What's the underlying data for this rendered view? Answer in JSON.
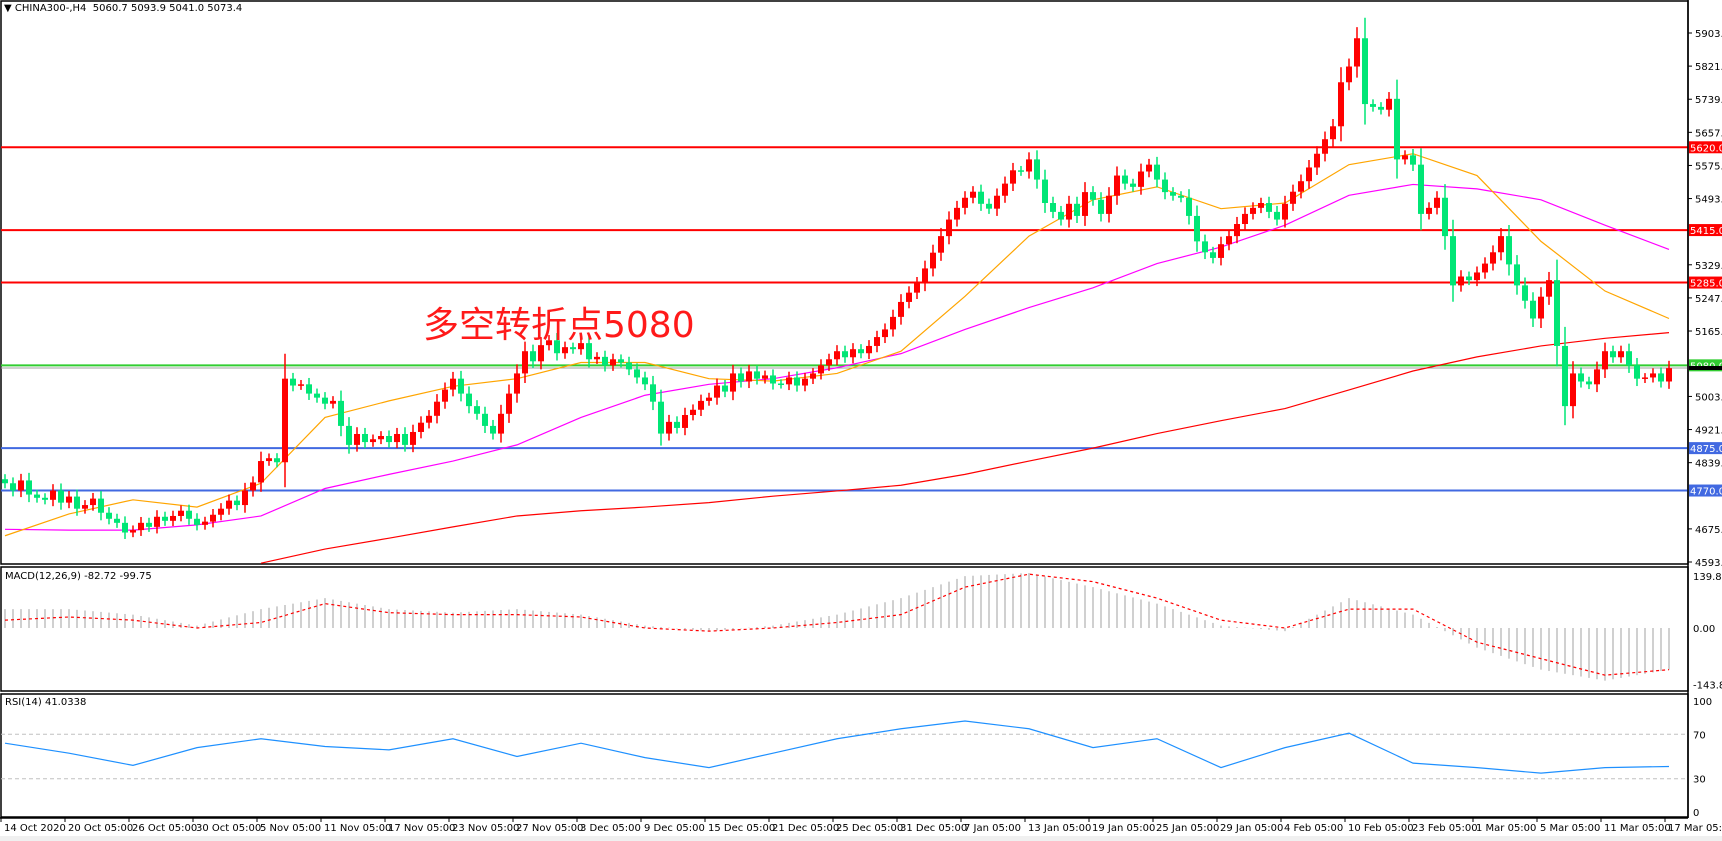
{
  "header": {
    "symbol": "CHINA300-,H4",
    "ohlc": "5060.7 5093.9 5041.0 5073.4",
    "menu_icon": "triangle-down-icon"
  },
  "annotation": "多空转折点5080",
  "macd_label": "MACD(12,26,9) -82.72 -99.75",
  "rsi_label": "RSI(14) 41.0338",
  "colors": {
    "up": "#ff0000",
    "down": "#00e676",
    "ma_fast": "#ffa500",
    "ma_mid": "#ff00ff",
    "ma_slow": "#ff0000",
    "rsi": "#1e90ff",
    "macd_hist": "#c0c0c0",
    "macd_signal": "#ff0000"
  },
  "chart_data": {
    "type": "candlestick",
    "price_axis": {
      "ylim": [
        4593,
        5903
      ],
      "ticks": [
        "5903.0",
        "5821.0",
        "5739.0",
        "5657.0",
        "5575.0",
        "5493.0",
        "5329.0",
        "5247.0",
        "5165.0",
        "5003.0",
        "4921.0",
        "4839.0",
        "4675.0",
        "4593.0"
      ]
    },
    "time_labels": [
      "14 Oct 2020",
      "20 Oct 05:00",
      "26 Oct 05:00",
      "30 Oct 05:00",
      "5 Nov 05:00",
      "11 Nov 05:00",
      "17 Nov 05:00",
      "23 Nov 05:00",
      "27 Nov 05:00",
      "3 Dec 05:00",
      "9 Dec 05:00",
      "15 Dec 05:00",
      "21 Dec 05:00",
      "25 Dec 05:00",
      "31 Dec 05:00",
      "7 Jan 05:00",
      "13 Jan 05:00",
      "19 Jan 05:00",
      "25 Jan 05:00",
      "29 Jan 05:00",
      "4 Feb 05:00",
      "10 Feb 05:00",
      "23 Feb 05:00",
      "1 Mar 05:00",
      "5 Mar 05:00",
      "11 Mar 05:00",
      "17 Mar 05:00"
    ],
    "closes": [
      4788,
      4770,
      4795,
      4760,
      4752,
      4747,
      4770,
      4740,
      4755,
      4725,
      4734,
      4750,
      4715,
      4700,
      4690,
      4666,
      4672,
      4690,
      4680,
      4705,
      4695,
      4707,
      4720,
      4700,
      4685,
      4693,
      4710,
      4725,
      4745,
      4734,
      4770,
      4790,
      4843,
      4850,
      4840,
      5047,
      5030,
      5033,
      5010,
      5000,
      4985,
      4992,
      4930,
      4883,
      4910,
      4890,
      4897,
      4905,
      4890,
      4910,
      4883,
      4915,
      4938,
      4955,
      4990,
      5020,
      5047,
      5010,
      4979,
      4960,
      4930,
      4911,
      4960,
      5010,
      5060,
      5115,
      5090,
      5130,
      5142,
      5110,
      5125,
      5120,
      5135,
      5095,
      5101,
      5080,
      5095,
      5087,
      5070,
      5050,
      5033,
      4990,
      4911,
      4940,
      4925,
      4957,
      4970,
      4992,
      5000,
      5030,
      5015,
      5060,
      5040,
      5065,
      5047,
      5055,
      5035,
      5033,
      5050,
      5030,
      5047,
      5060,
      5080,
      5095,
      5115,
      5100,
      5120,
      5110,
      5128,
      5150,
      5169,
      5200,
      5237,
      5260,
      5283,
      5320,
      5359,
      5400,
      5441,
      5470,
      5495,
      5510,
      5480,
      5468,
      5500,
      5530,
      5563,
      5560,
      5590,
      5540,
      5482,
      5460,
      5441,
      5480,
      5450,
      5509,
      5490,
      5455,
      5500,
      5550,
      5530,
      5522,
      5560,
      5577,
      5540,
      5509,
      5500,
      5495,
      5450,
      5387,
      5360,
      5346,
      5380,
      5400,
      5430,
      5455,
      5470,
      5482,
      5460,
      5441,
      5480,
      5510,
      5536,
      5570,
      5604,
      5640,
      5672,
      5781,
      5820,
      5890,
      5727,
      5720,
      5713,
      5740,
      5590,
      5600,
      5577,
      5455,
      5470,
      5495,
      5400,
      5278,
      5300,
      5291,
      5310,
      5332,
      5360,
      5400,
      5330,
      5278,
      5240,
      5196,
      5250,
      5291,
      5128,
      4979,
      5060,
      5040,
      5033,
      5070,
      5115,
      5100,
      5115,
      5080,
      5047,
      5050,
      5060,
      5040,
      5073
    ],
    "ma_sample_step_bars": 8,
    "ma_fast": [
      4658,
      4712,
      4747,
      4729,
      4788,
      4951,
      4992,
      5028,
      5047,
      5087,
      5087,
      5047,
      5041,
      5060,
      5115,
      5251,
      5400,
      5490,
      5522,
      5468,
      5482,
      5577,
      5604,
      5550,
      5387,
      5264,
      5196
    ],
    "ma_mid": [
      4674,
      4672,
      4672,
      4685,
      4707,
      4775,
      4810,
      4843,
      4883,
      4951,
      5006,
      5033,
      5047,
      5074,
      5109,
      5169,
      5223,
      5272,
      5332,
      5373,
      5427,
      5501,
      5528,
      5517,
      5490,
      5427,
      5367
    ],
    "ma_slow": [
      null,
      null,
      null,
      null,
      4590,
      4625,
      4652,
      4680,
      4707,
      4720,
      4729,
      4740,
      4756,
      4769,
      4783,
      4810,
      4843,
      4875,
      4911,
      4943,
      4973,
      5019,
      5066,
      5101,
      5128,
      5147,
      5161
    ],
    "levels": [
      {
        "price": 5620,
        "label": "5620.0",
        "color": "#ff0000"
      },
      {
        "price": 5415,
        "label": "5415.0",
        "color": "#ff0000"
      },
      {
        "price": 5285,
        "label": "5285.0",
        "color": "#ff0000"
      },
      {
        "price": 5080,
        "label": "5080.0",
        "color": "#32cd32"
      },
      {
        "price": 4875,
        "label": "4875.0",
        "color": "#4169e1"
      },
      {
        "price": 4770,
        "label": "4770.0",
        "color": "#4169e1"
      }
    ],
    "current_price": 5073.4,
    "macd": {
      "ylim": [
        -143.82,
        139.86
      ],
      "ticks": [
        "139.86",
        "0.00",
        "-143.82"
      ],
      "histogram": [
        48,
        48,
        34,
        6,
        48,
        76,
        48,
        39,
        48,
        34,
        6,
        -8,
        6,
        34,
        76,
        132,
        140,
        104,
        62,
        6,
        -8,
        76,
        34,
        -50,
        -106,
        -134,
        -106
      ],
      "signal": [
        20,
        28,
        20,
        0,
        14,
        62,
        39,
        34,
        34,
        28,
        0,
        -8,
        0,
        14,
        34,
        104,
        137,
        118,
        76,
        20,
        0,
        48,
        48,
        -36,
        -78,
        -120,
        -106
      ]
    },
    "rsi": {
      "ylim": [
        0,
        100
      ],
      "ticks": [
        "100",
        "70",
        "30",
        "0"
      ],
      "levels": [
        70,
        30
      ],
      "values": [
        62,
        53,
        42,
        58,
        66,
        59,
        56,
        66,
        50,
        62,
        49,
        40,
        53,
        66,
        75,
        82,
        75,
        58,
        66,
        40,
        58,
        71,
        44,
        40,
        35,
        40,
        41
      ]
    }
  }
}
